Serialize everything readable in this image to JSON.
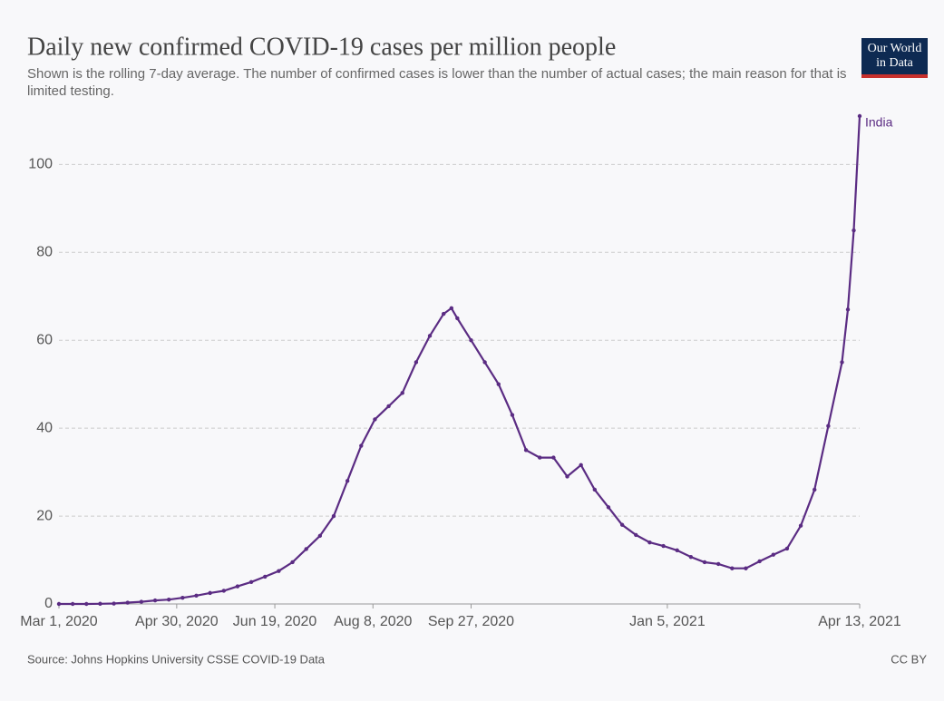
{
  "chart_data": {
    "type": "line",
    "title": "Daily new confirmed COVID-19 cases per million people",
    "subtitle": "Shown is the rolling 7-day average. The number of confirmed cases is lower than the number of actual cases; the main reason for that is limited testing.",
    "source": "Source: Johns Hopkins University CSSE COVID-19 Data",
    "license": "CC BY",
    "logo": "Our World in Data",
    "x": [
      "2020-03-01",
      "2020-03-08",
      "2020-03-15",
      "2020-03-22",
      "2020-03-29",
      "2020-04-05",
      "2020-04-12",
      "2020-04-19",
      "2020-04-26",
      "2020-05-03",
      "2020-05-10",
      "2020-05-17",
      "2020-05-24",
      "2020-05-31",
      "2020-06-07",
      "2020-06-14",
      "2020-06-21",
      "2020-06-28",
      "2020-07-05",
      "2020-07-12",
      "2020-07-19",
      "2020-07-26",
      "2020-08-02",
      "2020-08-09",
      "2020-08-16",
      "2020-08-23",
      "2020-08-30",
      "2020-09-06",
      "2020-09-13",
      "2020-09-17",
      "2020-09-20",
      "2020-09-27",
      "2020-10-04",
      "2020-10-11",
      "2020-10-18",
      "2020-10-25",
      "2020-11-01",
      "2020-11-08",
      "2020-11-15",
      "2020-11-22",
      "2020-11-29",
      "2020-12-06",
      "2020-12-13",
      "2020-12-20",
      "2020-12-27",
      "2021-01-03",
      "2021-01-10",
      "2021-01-17",
      "2021-01-24",
      "2021-01-31",
      "2021-02-07",
      "2021-02-14",
      "2021-02-21",
      "2021-02-28",
      "2021-03-07",
      "2021-03-14",
      "2021-03-21",
      "2021-03-28",
      "2021-04-04",
      "2021-04-07",
      "2021-04-10",
      "2021-04-13"
    ],
    "series": [
      {
        "name": "India",
        "color": "#5b2c83",
        "values": [
          0,
          0,
          0,
          0.05,
          0.1,
          0.3,
          0.5,
          0.8,
          1.0,
          1.4,
          1.9,
          2.5,
          3.0,
          4.0,
          5.0,
          6.2,
          7.5,
          9.5,
          12.5,
          15.5,
          20,
          28,
          36,
          42,
          45,
          48,
          55,
          61,
          66,
          67.3,
          65,
          60,
          55,
          50,
          43,
          35,
          33.3,
          33.3,
          29,
          31.6,
          26,
          22,
          18,
          15.7,
          14,
          13.2,
          12.2,
          10.7,
          9.5,
          9.1,
          8.1,
          8.1,
          9.7,
          11.2,
          12.6,
          17.8,
          26,
          40.5,
          55,
          67,
          85,
          111
        ]
      }
    ],
    "xlim": [
      "2020-03-01",
      "2021-04-13"
    ],
    "xticks": [
      {
        "value": "2020-03-01",
        "label": "Mar 1, 2020"
      },
      {
        "value": "2020-04-30",
        "label": "Apr 30, 2020"
      },
      {
        "value": "2020-06-19",
        "label": "Jun 19, 2020"
      },
      {
        "value": "2020-08-08",
        "label": "Aug 8, 2020"
      },
      {
        "value": "2020-09-27",
        "label": "Sep 27, 2020"
      },
      {
        "value": "2021-01-05",
        "label": "Jan 5, 2021"
      },
      {
        "value": "2021-04-13",
        "label": "Apr 13, 2021"
      }
    ],
    "ylim": [
      0,
      111
    ],
    "yticks": [
      0,
      20,
      40,
      60,
      80,
      100
    ],
    "grid": true
  }
}
